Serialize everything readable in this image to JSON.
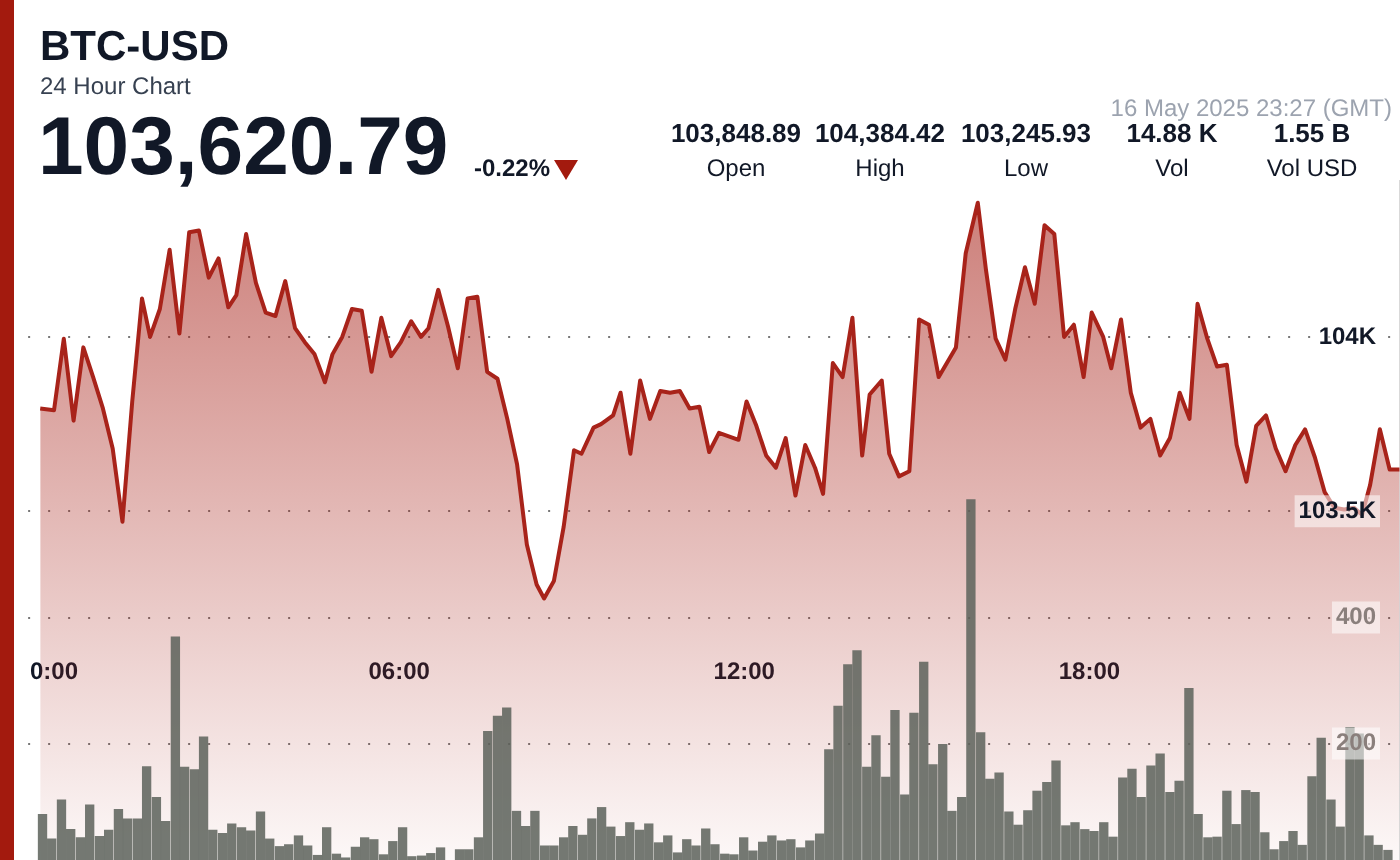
{
  "chart_data": {
    "type": "area",
    "title": "BTC-USD",
    "subtitle": "24 Hour Chart",
    "annotations": [
      "103,620.79",
      "-0.22%",
      "103,848.89",
      "Open",
      "104,384.42",
      "High",
      "103,245.93",
      "Low",
      "14.88 K",
      "Vol",
      "1.55 B",
      "Vol USD",
      "16 May 2025 23:27 (GMT)"
    ],
    "xlim": [
      -0.45,
      23.4
    ],
    "xticks": [
      {
        "value": 0,
        "label": "0:00"
      },
      {
        "value": 6,
        "label": "06:00"
      },
      {
        "value": 12,
        "label": "12:00"
      },
      {
        "value": 18,
        "label": "18:00"
      }
    ],
    "ylim": [
      102500,
      104450
    ],
    "yticks": [
      {
        "value": 104000,
        "label": "104K"
      },
      {
        "value": 103500,
        "label": "103.5K"
      }
    ],
    "y2lim": [
      15,
      1095
    ],
    "y2ticks": [
      200,
      400
    ],
    "grid": "y",
    "series": [
      {
        "color": "#a8231a",
        "x": [
          -0.24,
          0,
          0.17,
          0.34,
          0.51,
          0.68,
          0.85,
          1.02,
          1.19,
          1.36,
          1.53,
          1.67,
          1.84,
          2.01,
          2.18,
          2.35,
          2.52,
          2.69,
          2.86,
          3.03,
          3.17,
          3.34,
          3.51,
          3.68,
          3.85,
          4.02,
          4.19,
          4.36,
          4.53,
          4.71,
          4.84,
          5.01,
          5.18,
          5.35,
          5.52,
          5.69,
          5.86,
          6.03,
          6.21,
          6.38,
          6.51,
          6.68,
          6.85,
          7.02,
          7.19,
          7.36,
          7.53,
          7.71,
          7.88,
          8.05,
          8.22,
          8.39,
          8.52,
          8.69,
          8.86,
          9.04,
          9.17,
          9.38,
          9.51,
          9.72,
          9.85,
          10.02,
          10.19,
          10.36,
          10.54,
          10.71,
          10.88,
          11.05,
          11.22,
          11.39,
          11.56,
          11.73,
          11.9,
          12.04,
          12.21,
          12.38,
          12.55,
          12.72,
          12.89,
          13.06,
          13.23,
          13.37,
          13.54,
          13.71,
          13.88,
          14.05,
          14.18,
          14.39,
          14.52,
          14.69,
          14.87,
          15.04,
          15.21,
          15.38,
          15.68,
          15.85,
          16.06,
          16.2,
          16.37,
          16.54,
          16.71,
          16.88,
          17.05,
          17.22,
          17.39,
          17.56,
          17.73,
          17.9,
          18.04,
          18.24,
          18.38,
          18.55,
          18.72,
          18.89,
          19.06,
          19.23,
          19.4,
          19.57,
          19.74,
          19.88,
          20.05,
          20.22,
          20.39,
          20.56,
          20.73,
          20.9,
          21.07,
          21.24,
          21.41,
          21.58,
          21.75,
          21.92,
          22.09,
          22.26,
          22.43,
          22.6,
          22.74,
          22.88,
          23.05,
          23.22,
          23.39
        ],
        "values": [
          103795,
          103790,
          103995,
          103760,
          103970,
          103885,
          103795,
          103680,
          103470,
          103815,
          104110,
          104000,
          104080,
          104250,
          104010,
          104300,
          104305,
          104170,
          104225,
          104085,
          104120,
          104295,
          104155,
          104070,
          104060,
          104160,
          104025,
          103985,
          103950,
          103870,
          103950,
          104000,
          104080,
          104075,
          103900,
          104055,
          103945,
          103985,
          104045,
          104000,
          104025,
          104135,
          104030,
          103910,
          104110,
          104115,
          103900,
          103880,
          103765,
          103635,
          103405,
          103290,
          103250,
          103300,
          103455,
          103675,
          103665,
          103740,
          103750,
          103775,
          103840,
          103665,
          103875,
          103765,
          103845,
          103840,
          103845,
          103795,
          103800,
          103670,
          103725,
          103715,
          103705,
          103815,
          103745,
          103660,
          103625,
          103710,
          103545,
          103690,
          103625,
          103550,
          103925,
          103885,
          104055,
          103660,
          103835,
          103875,
          103665,
          103600,
          103615,
          104050,
          104035,
          103885,
          103970,
          104240,
          104385,
          104195,
          103995,
          103935,
          104080,
          104200,
          104095,
          104320,
          104295,
          104000,
          104035,
          103885,
          104070,
          104000,
          103910,
          104050,
          103840,
          103740,
          103765,
          103660,
          103710,
          103840,
          103765,
          104095,
          103995,
          103915,
          103920,
          103690,
          103585,
          103745,
          103775,
          103680,
          103615,
          103690,
          103735,
          103655,
          103555,
          103510,
          103505,
          103510,
          103490,
          103575,
          103735,
          103620,
          103620
        ]
      },
      {
        "type": "bar",
        "axis": "y2",
        "color": "#5c615a",
        "x": [
          -0.2,
          -0.04,
          0.13,
          0.29,
          0.46,
          0.62,
          0.79,
          0.95,
          1.12,
          1.28,
          1.45,
          1.61,
          1.78,
          1.94,
          2.11,
          2.27,
          2.44,
          2.6,
          2.76,
          2.93,
          3.09,
          3.26,
          3.42,
          3.59,
          3.75,
          3.92,
          4.08,
          4.25,
          4.41,
          4.58,
          4.74,
          4.91,
          5.07,
          5.24,
          5.4,
          5.56,
          5.73,
          5.89,
          6.06,
          6.22,
          6.39,
          6.55,
          6.72,
          6.88,
          7.05,
          7.21,
          7.38,
          7.54,
          7.71,
          7.87,
          8.04,
          8.2,
          8.36,
          8.53,
          8.69,
          8.86,
          9.02,
          9.19,
          9.35,
          9.52,
          9.68,
          9.85,
          10.01,
          10.18,
          10.34,
          10.51,
          10.67,
          10.84,
          11,
          11.16,
          11.33,
          11.49,
          11.66,
          11.82,
          11.99,
          12.15,
          12.32,
          12.48,
          12.65,
          12.81,
          12.98,
          13.14,
          13.31,
          13.47,
          13.63,
          13.8,
          13.96,
          14.13,
          14.29,
          14.46,
          14.62,
          14.79,
          14.95,
          15.12,
          15.28,
          15.45,
          15.61,
          15.78,
          15.94,
          16.11,
          16.27,
          16.43,
          16.6,
          16.76,
          16.93,
          17.09,
          17.26,
          17.42,
          17.59,
          17.75,
          17.92,
          18.08,
          18.25,
          18.41,
          18.58,
          18.74,
          18.9,
          19.07,
          19.23,
          19.4,
          19.56,
          19.73,
          19.89,
          20.06,
          20.22,
          20.39,
          20.55,
          20.72,
          20.88,
          21.05,
          21.21,
          21.38,
          21.54,
          21.7,
          21.87,
          22.03,
          22.2,
          22.36,
          22.53,
          22.69,
          22.86,
          23.02,
          23.19
        ],
        "values": [
          87,
          48,
          110,
          63,
          50,
          102,
          52,
          62,
          95,
          80,
          80,
          163,
          114,
          76,
          369,
          162,
          158,
          210,
          62,
          57,
          72,
          66,
          61,
          91,
          48,
          36,
          39,
          53,
          37,
          22,
          66,
          24,
          18,
          35,
          50,
          47,
          23,
          44,
          66,
          20,
          21,
          25,
          34,
          null,
          31,
          31,
          50,
          219,
          243,
          256,
          92,
          68,
          92,
          37,
          37,
          50,
          68,
          54,
          80,
          98,
          67,
          52,
          74,
          62,
          72,
          42,
          53,
          26,
          47,
          37,
          64,
          39,
          24,
          23,
          50,
          29,
          43,
          53,
          45,
          47,
          34,
          45,
          56,
          190,
          259,
          325,
          347,
          162,
          212,
          146,
          252,
          118,
          248,
          329,
          166,
          198,
          92,
          114,
          587,
          217,
          143,
          153,
          91,
          70,
          93,
          124,
          138,
          172,
          69,
          74,
          63,
          60,
          74,
          51,
          145,
          159,
          114,
          164,
          183,
          122,
          140,
          287,
          87,
          50,
          51,
          124,
          71,
          125,
          122,
          58,
          31,
          44,
          60,
          38,
          147,
          208,
          110,
          67,
          225,
          215,
          53,
          38,
          30
        ]
      }
    ]
  }
}
